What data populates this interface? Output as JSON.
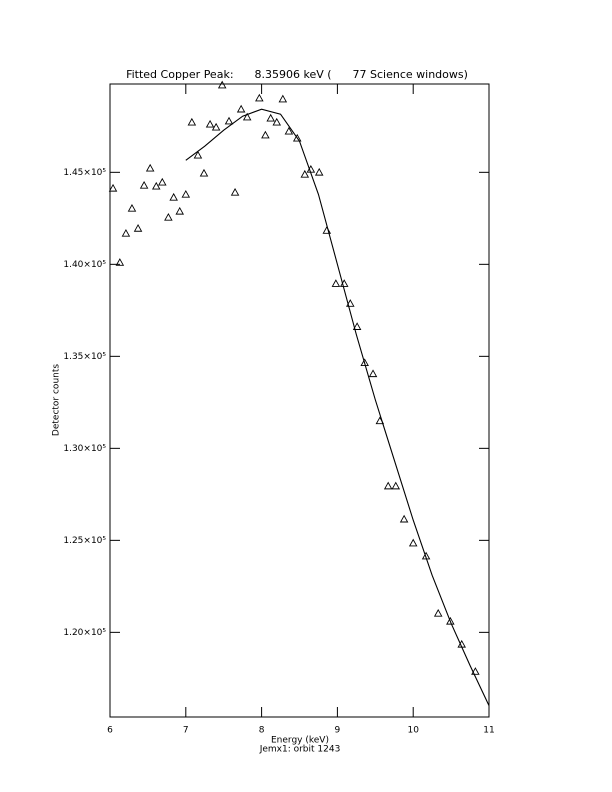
{
  "chart_data": {
    "type": "scatter",
    "title": "Fitted Copper Peak:      8.35906 keV (      77 Science windows)",
    "x_label": "Energy (keV)",
    "subtitle": "Jemx1: orbit 1243",
    "y_label": "Detector counts",
    "color": "#000000",
    "xlim": [
      6,
      11
    ],
    "xticks": [
      6,
      7,
      8,
      9,
      10,
      11
    ],
    "ylim": [
      115400,
      149800
    ],
    "yticks": [
      {
        "value": 120000,
        "label": "1.20×10⁵"
      },
      {
        "value": 125000,
        "label": "1.25×10⁵"
      },
      {
        "value": 130000,
        "label": "1.30×10⁵"
      },
      {
        "value": 135000,
        "label": "1.35×10⁵"
      },
      {
        "value": 140000,
        "label": "1.40×10⁵"
      },
      {
        "value": 145000,
        "label": "1.45×10⁵"
      }
    ],
    "points": {
      "x": [
        6.04,
        6.13,
        6.21,
        6.29,
        6.37,
        6.45,
        6.53,
        6.61,
        6.69,
        6.77,
        6.84,
        6.92,
        7.0,
        7.08,
        7.16,
        7.24,
        7.32,
        7.4,
        7.48,
        7.57,
        7.65,
        7.73,
        7.81,
        7.97,
        8.05,
        8.12,
        8.2,
        8.28,
        8.36,
        8.47,
        8.57,
        8.65,
        8.76,
        8.86,
        8.98,
        9.09,
        9.17,
        9.26,
        9.36,
        9.47,
        9.56,
        9.67,
        9.77,
        9.88,
        10.0,
        10.17,
        10.33,
        10.49,
        10.64,
        10.82
      ],
      "y": [
        144130,
        140100,
        141680,
        143040,
        141950,
        144290,
        145220,
        144240,
        144460,
        142550,
        143640,
        142880,
        143800,
        147720,
        145930,
        144950,
        147610,
        147450,
        149740,
        147780,
        143910,
        148430,
        148000,
        149030,
        147020,
        147940,
        147720,
        148980,
        147230,
        146850,
        144890,
        145160,
        145000,
        141840,
        138950,
        138950,
        137870,
        136610,
        134650,
        134050,
        131490,
        127950,
        127950,
        126150,
        124850,
        124140,
        121030,
        120600,
        119350,
        117870
      ]
    },
    "fit": {
      "x": [
        7.0,
        7.25,
        7.5,
        7.75,
        8.0,
        8.25,
        8.5,
        8.75,
        9.0,
        9.25,
        9.5,
        9.75,
        10.0,
        10.25,
        10.5,
        10.75,
        11.0
      ],
      "y": [
        145650,
        146420,
        147290,
        148050,
        148430,
        148160,
        146690,
        143800,
        140000,
        136180,
        132640,
        129370,
        126100,
        123100,
        120490,
        118200,
        116020
      ]
    }
  }
}
